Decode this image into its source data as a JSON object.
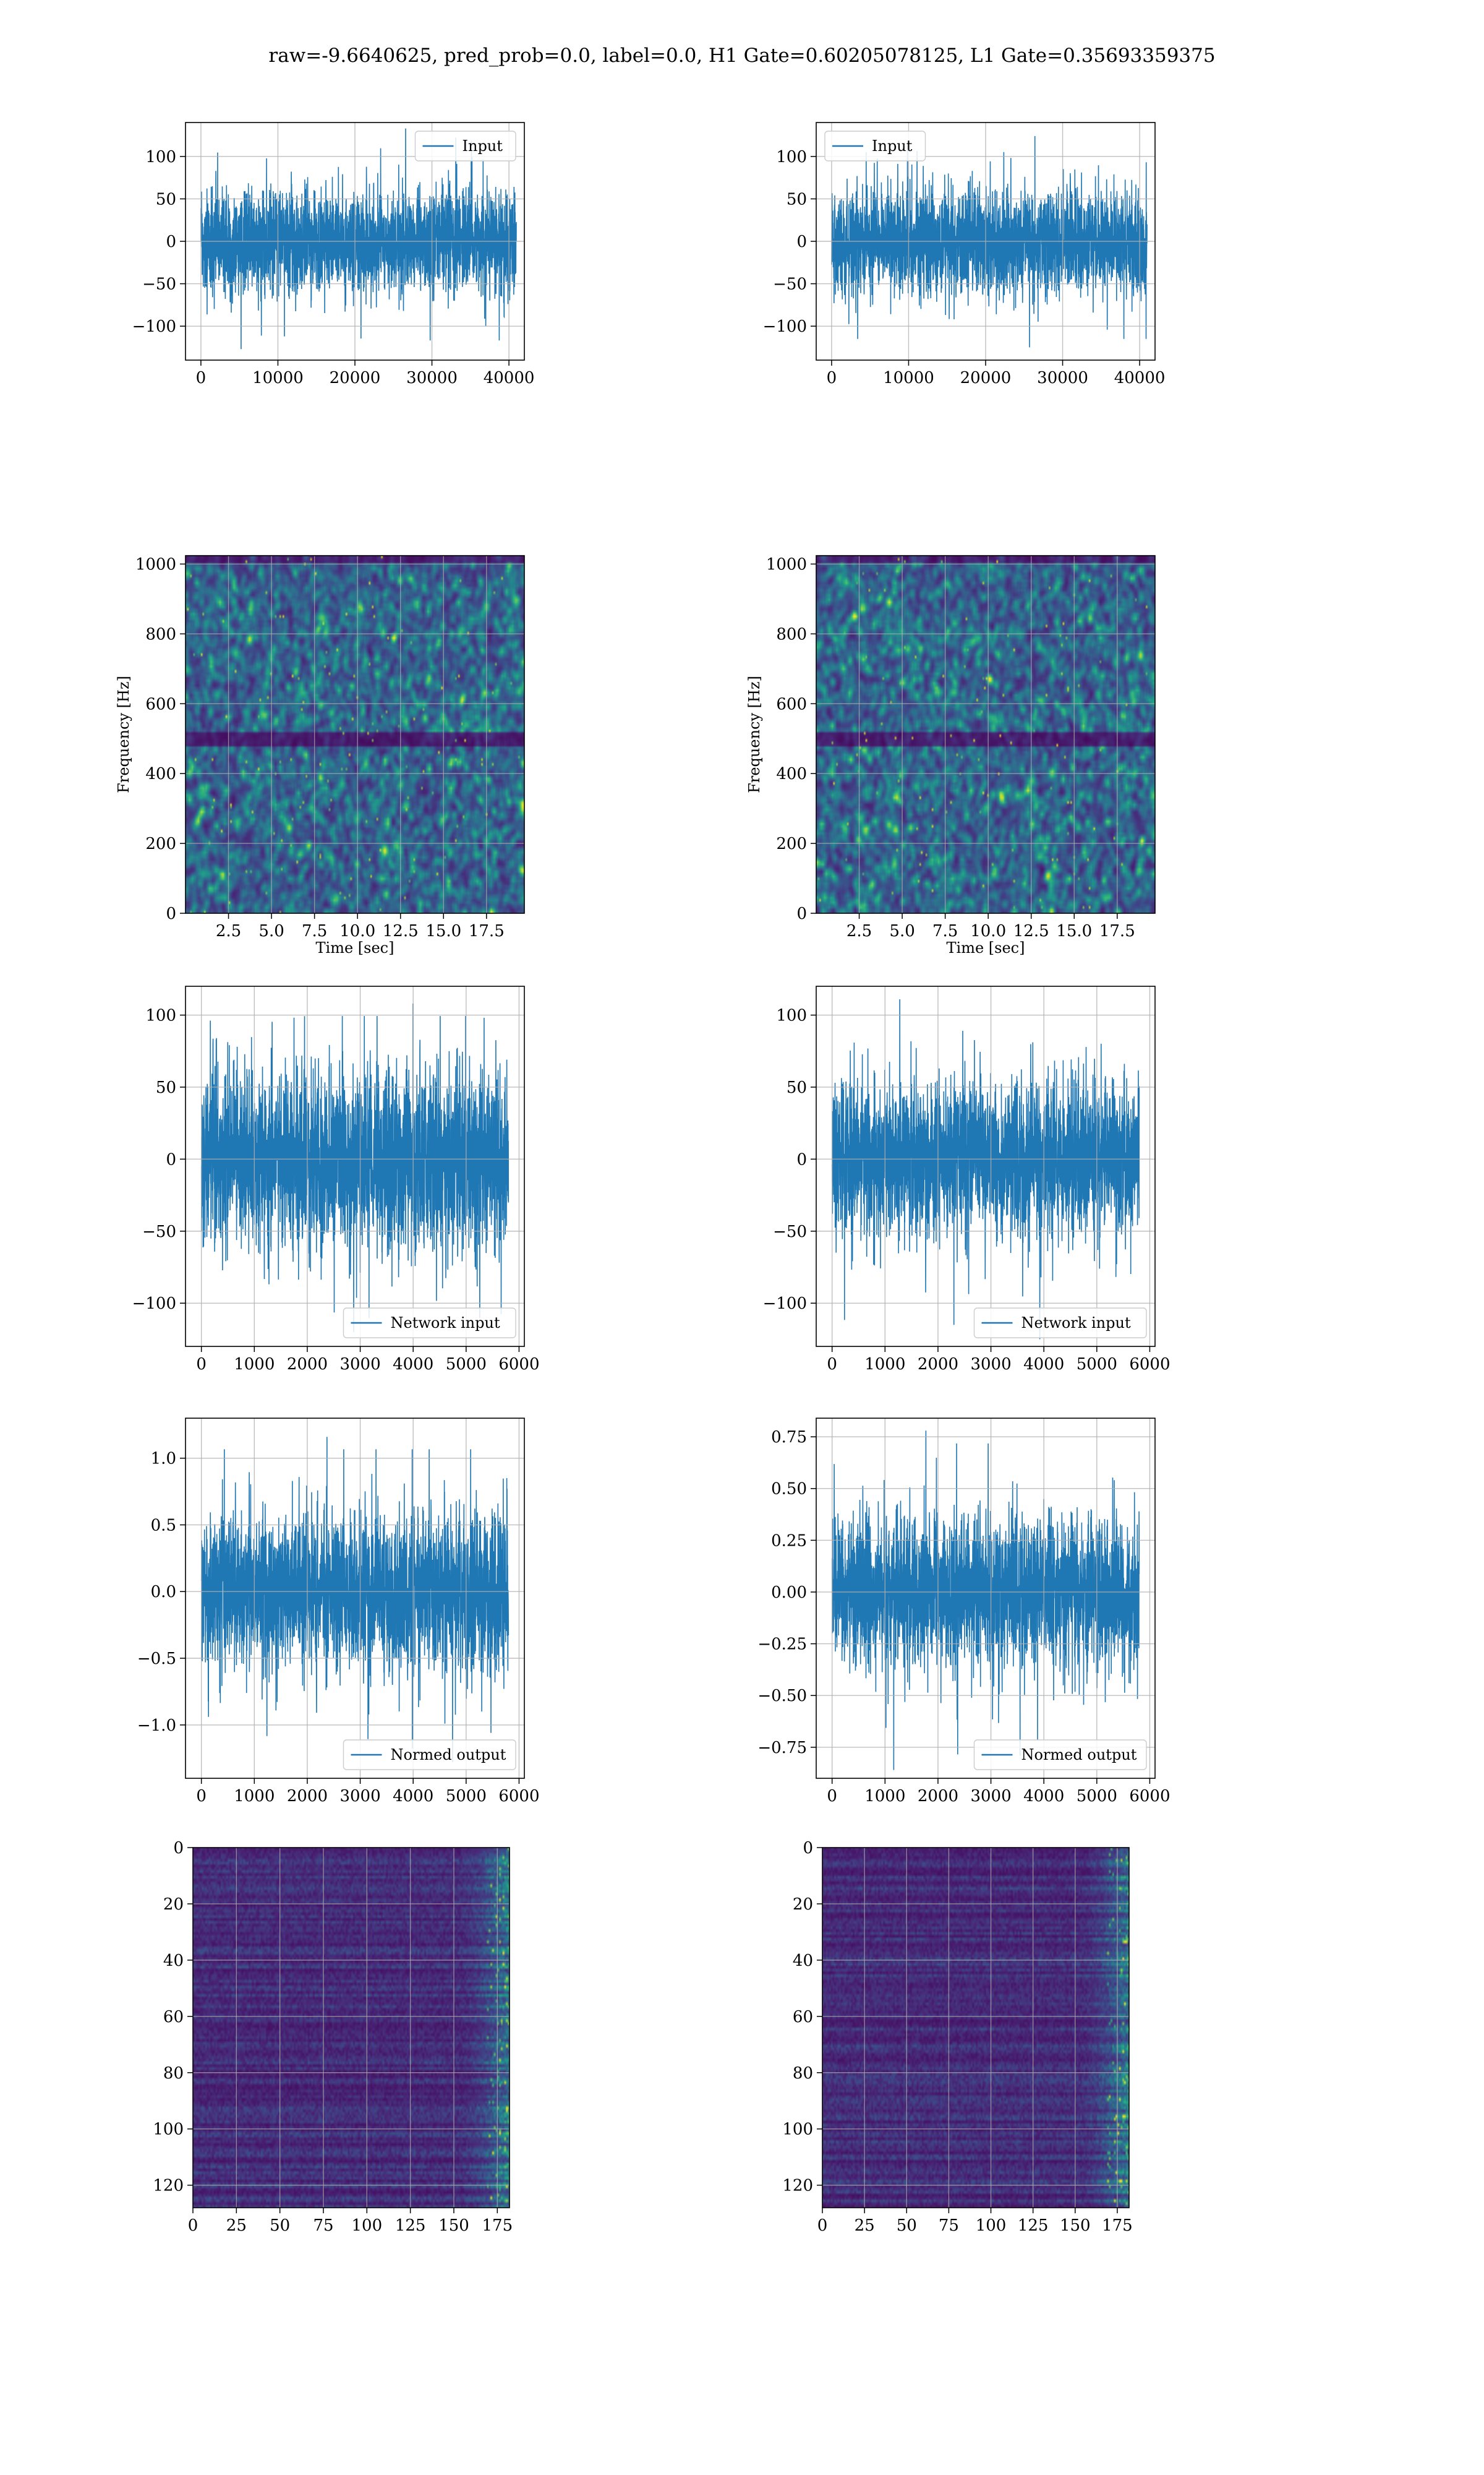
{
  "figure_title": "raw=-9.6640625, pred_prob=0.0, label=0.0, H1 Gate=0.60205078125, L1 Gate=0.35693359375",
  "colors": {
    "signal": "#1f77b4",
    "grid": "#b0b0b0",
    "frame": "#000000"
  },
  "chart_data": [
    {
      "id": "input-h1",
      "type": "line",
      "legend": [
        "Input"
      ],
      "legend_loc": "upper right",
      "xlim": [
        -2000,
        42000
      ],
      "ylim": [
        -140,
        140
      ],
      "x_range": [
        0,
        40960
      ],
      "xticks": [
        0,
        10000,
        20000,
        30000,
        40000
      ],
      "xtick_labels": [
        "0",
        "10000",
        "20000",
        "30000",
        "40000"
      ],
      "yticks": [
        -100,
        -50,
        0,
        50,
        100
      ],
      "ytick_labels": [
        "−100",
        "−50",
        "0",
        "50",
        "100"
      ],
      "amplitude": 30,
      "peaks": [
        133,
        -127
      ]
    },
    {
      "id": "input-l1",
      "type": "line",
      "legend": [
        "Input"
      ],
      "legend_loc": "upper left",
      "xlim": [
        -2000,
        42000
      ],
      "ylim": [
        -140,
        140
      ],
      "x_range": [
        0,
        40960
      ],
      "xticks": [
        0,
        10000,
        20000,
        30000,
        40000
      ],
      "xtick_labels": [
        "0",
        "10000",
        "20000",
        "30000",
        "40000"
      ],
      "yticks": [
        -100,
        -50,
        0,
        50,
        100
      ],
      "ytick_labels": [
        "−100",
        "−50",
        "0",
        "50",
        "100"
      ],
      "amplitude": 30,
      "peaks": [
        124,
        -125
      ]
    },
    {
      "id": "spec-h1",
      "type": "heatmap",
      "xlabel": "Time [sec]",
      "ylabel": "Frequency [Hz]",
      "xlim": [
        0,
        19.7
      ],
      "ylim": [
        0,
        1024
      ],
      "xticks": [
        2.5,
        5.0,
        7.5,
        10.0,
        12.5,
        15.0,
        17.5
      ],
      "xtick_labels": [
        "2.5",
        "5.0",
        "7.5",
        "10.0",
        "12.5",
        "15.0",
        "17.5"
      ],
      "yticks": [
        0,
        200,
        400,
        600,
        800,
        1000
      ],
      "ytick_labels": [
        "0",
        "200",
        "400",
        "600",
        "800",
        "1000"
      ],
      "colormap": "viridis",
      "dark_band_hz": 500
    },
    {
      "id": "spec-l1",
      "type": "heatmap",
      "xlabel": "Time [sec]",
      "ylabel": "Frequency [Hz]",
      "xlim": [
        0,
        19.7
      ],
      "ylim": [
        0,
        1024
      ],
      "xticks": [
        2.5,
        5.0,
        7.5,
        10.0,
        12.5,
        15.0,
        17.5
      ],
      "xtick_labels": [
        "2.5",
        "5.0",
        "7.5",
        "10.0",
        "12.5",
        "15.0",
        "17.5"
      ],
      "yticks": [
        0,
        200,
        400,
        600,
        800,
        1000
      ],
      "ytick_labels": [
        "0",
        "200",
        "400",
        "600",
        "800",
        "1000"
      ],
      "colormap": "viridis",
      "dark_band_hz": 500
    },
    {
      "id": "net-h1",
      "type": "line",
      "legend": [
        "Network input"
      ],
      "legend_loc": "lower right",
      "xlim": [
        -300,
        6100
      ],
      "ylim": [
        -130,
        120
      ],
      "x_range": [
        0,
        5800
      ],
      "xticks": [
        0,
        1000,
        2000,
        3000,
        4000,
        5000,
        6000
      ],
      "xtick_labels": [
        "0",
        "1000",
        "2000",
        "3000",
        "4000",
        "5000",
        "6000"
      ],
      "yticks": [
        -100,
        -50,
        0,
        50,
        100
      ],
      "ytick_labels": [
        "−100",
        "−50",
        "0",
        "50",
        "100"
      ],
      "amplitude": 30,
      "peaks": [
        108,
        -120
      ]
    },
    {
      "id": "net-l1",
      "type": "line",
      "legend": [
        "Network input"
      ],
      "legend_loc": "lower right",
      "xlim": [
        -300,
        6100
      ],
      "ylim": [
        -130,
        120
      ],
      "x_range": [
        0,
        5800
      ],
      "xticks": [
        0,
        1000,
        2000,
        3000,
        4000,
        5000,
        6000
      ],
      "xtick_labels": [
        "0",
        "1000",
        "2000",
        "3000",
        "4000",
        "5000",
        "6000"
      ],
      "yticks": [
        -100,
        -50,
        0,
        50,
        100
      ],
      "ytick_labels": [
        "−100",
        "−50",
        "0",
        "50",
        "100"
      ],
      "amplitude": 25,
      "peaks": [
        111,
        -125
      ]
    },
    {
      "id": "norm-h1",
      "type": "line",
      "legend": [
        "Normed output"
      ],
      "legend_loc": "lower right",
      "xlim": [
        -300,
        6100
      ],
      "ylim": [
        -1.4,
        1.3
      ],
      "x_range": [
        0,
        5800
      ],
      "xticks": [
        0,
        1000,
        2000,
        3000,
        4000,
        5000,
        6000
      ],
      "xtick_labels": [
        "0",
        "1000",
        "2000",
        "3000",
        "4000",
        "5000",
        "6000"
      ],
      "yticks": [
        -1.0,
        -0.5,
        0.0,
        0.5,
        1.0
      ],
      "ytick_labels": [
        "−1.0",
        "−0.5",
        "0.0",
        "0.5",
        "1.0"
      ],
      "amplitude": 0.28,
      "peaks": [
        1.16,
        -1.28
      ]
    },
    {
      "id": "norm-l1",
      "type": "line",
      "legend": [
        "Normed output"
      ],
      "legend_loc": "lower right",
      "xlim": [
        -300,
        6100
      ],
      "ylim": [
        -0.9,
        0.84
      ],
      "x_range": [
        0,
        5800
      ],
      "xticks": [
        0,
        1000,
        2000,
        3000,
        4000,
        5000,
        6000
      ],
      "xtick_labels": [
        "0",
        "1000",
        "2000",
        "3000",
        "4000",
        "5000",
        "6000"
      ],
      "yticks": [
        -0.75,
        -0.5,
        -0.25,
        0.0,
        0.25,
        0.5,
        0.75
      ],
      "ytick_labels": [
        "−0.75",
        "−0.50",
        "−0.25",
        "0.00",
        "0.25",
        "0.50",
        "0.75"
      ],
      "amplitude": 0.17,
      "peaks": [
        0.78,
        -0.86
      ]
    },
    {
      "id": "feat-h1",
      "type": "heatmap",
      "xlim": [
        0,
        182
      ],
      "ylim": [
        128,
        0
      ],
      "xticks": [
        0,
        25,
        50,
        75,
        100,
        125,
        150,
        175
      ],
      "xtick_labels": [
        "0",
        "25",
        "50",
        "75",
        "100",
        "125",
        "150",
        "175"
      ],
      "yticks": [
        0,
        20,
        40,
        60,
        80,
        100,
        120
      ],
      "ytick_labels": [
        "0",
        "20",
        "40",
        "60",
        "80",
        "100",
        "120"
      ],
      "colormap": "viridis"
    },
    {
      "id": "feat-l1",
      "type": "heatmap",
      "xlim": [
        0,
        182
      ],
      "ylim": [
        128,
        0
      ],
      "xticks": [
        0,
        25,
        50,
        75,
        100,
        125,
        150,
        175
      ],
      "xtick_labels": [
        "0",
        "25",
        "50",
        "75",
        "100",
        "125",
        "150",
        "175"
      ],
      "yticks": [
        0,
        20,
        40,
        60,
        80,
        100,
        120
      ],
      "ytick_labels": [
        "0",
        "20",
        "40",
        "60",
        "80",
        "100",
        "120"
      ],
      "colormap": "viridis"
    }
  ]
}
